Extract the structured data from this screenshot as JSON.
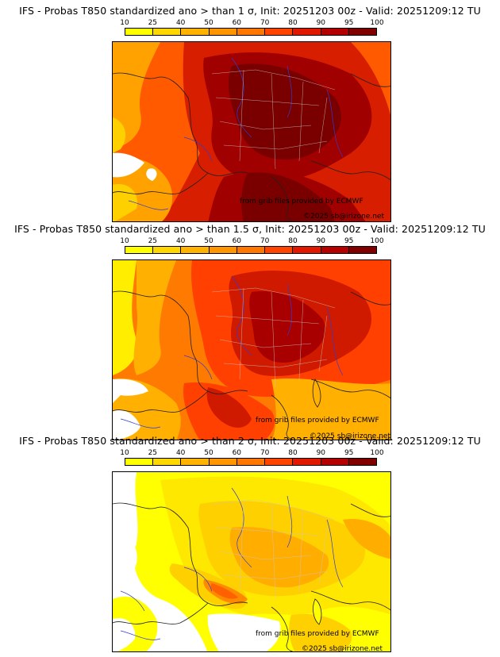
{
  "colorbar": {
    "labels": [
      "10",
      "25",
      "40",
      "50",
      "60",
      "70",
      "80",
      "90",
      "95",
      "100"
    ],
    "colors": [
      "#ffff00",
      "#ffd700",
      "#ffb300",
      "#ff9500",
      "#ff7700",
      "#ff4400",
      "#e01800",
      "#b40000",
      "#800000"
    ]
  },
  "panels": [
    {
      "title": "IFS - Probas T850  standardized ano > than 1 σ, Init: 20251203 00z - Valid: 20251209:12 TU",
      "credit_source": "from grib files provided by ECMWF",
      "credit_copyright": "©2025 sb@irizone.net",
      "colors": {
        "base": "#ff5a00",
        "mid": "#d81e00",
        "high": "#a00000",
        "peak": "#7a0000",
        "low": "#ffa200",
        "min": "#ffd000"
      }
    },
    {
      "title": "IFS - Probas T850  standardized ano > than 1.5 σ, Init: 20251203 00z - Valid: 20251209:12 TU",
      "credit_source": "from grib files provided by ECMWF",
      "credit_copyright": "©2025 sb@irizone.net",
      "colors": {
        "base": "#ff7a00",
        "mid": "#ff4000",
        "high": "#d01a00",
        "peak": "#a80000",
        "low": "#ffb000",
        "min": "#ffee00"
      }
    },
    {
      "title": "IFS - Probas T850  standardized ano > than 2 σ, Init: 20251203 00z - Valid: 20251209:12 TU",
      "credit_source": "from grib files provided by ECMWF",
      "credit_copyright": "©2025 sb@irizone.net",
      "colors": {
        "base": "#ffd000",
        "mid": "#ffae00",
        "high": "#ff8a00",
        "peak": "#ff6000",
        "low": "#ffe800",
        "min": "#ffff00"
      }
    }
  ]
}
